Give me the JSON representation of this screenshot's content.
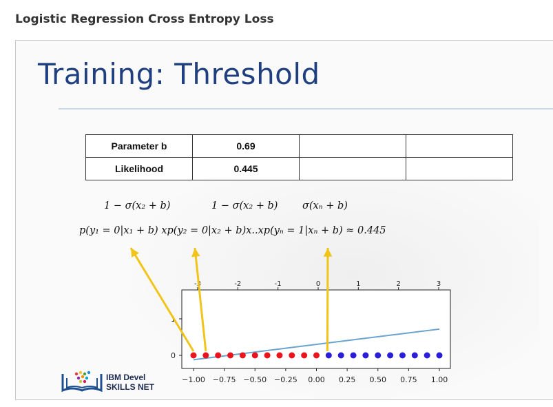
{
  "page": {
    "heading": "Logistic Regression Cross Entropy Loss"
  },
  "slide": {
    "title": "Training: Threshold",
    "table": {
      "rows": [
        {
          "label": "Parameter b",
          "value": "0.69"
        },
        {
          "label": "Likelihood",
          "value": "0.445"
        }
      ]
    },
    "formula": {
      "top1": "1 − σ(x₂ + b)",
      "top2": "1 − σ(x₂ + b)",
      "top3": "σ(xₙ + b)",
      "main": "p(y₁ = 0|x₁ + b) xp(y₂ = 0|x₂ + b)x..xp(yₙ = 1|xₙ + b) ≈ 0.445"
    },
    "logo": {
      "line1": "IBM Devel",
      "line2": "SKILLS NET"
    }
  },
  "chart_data": {
    "type": "scatter",
    "x_top_ticks": [
      "-3",
      "-2",
      "-1",
      "0",
      "1",
      "2",
      "3"
    ],
    "x_bottom_ticks": [
      "−1.00",
      "−0.75",
      "−0.50",
      "−0.25",
      "0.00",
      "0.25",
      "0.50",
      "0.75",
      "1.00"
    ],
    "y_ticks": [
      "0",
      "1"
    ],
    "class0_color": "#e8141e",
    "class1_color": "#2a1fd6",
    "line_color": "#6aa4cc",
    "arrow_color": "#f0c419",
    "class0_x": [
      -1.0,
      -0.9,
      -0.8,
      -0.7,
      -0.6,
      -0.5,
      -0.4,
      -0.3,
      -0.2,
      -0.1,
      0.0
    ],
    "class1_x": [
      0.1,
      0.2,
      0.3,
      0.4,
      0.5,
      0.6,
      0.7,
      0.8,
      0.9,
      1.0
    ],
    "line_points": [
      [
        -1.0,
        -0.12
      ],
      [
        1.0,
        0.72
      ]
    ]
  }
}
